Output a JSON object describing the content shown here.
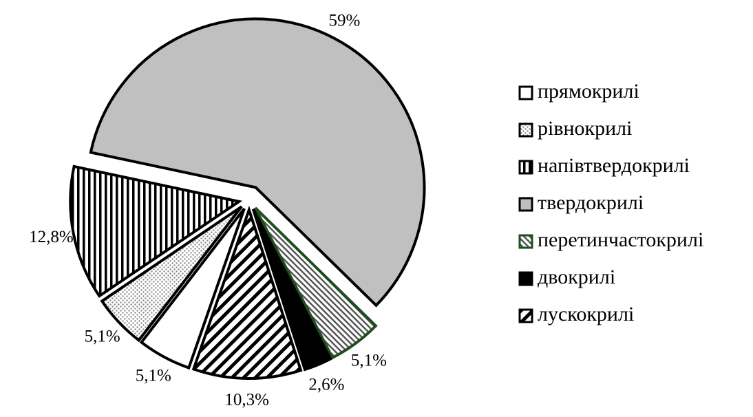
{
  "chart_data": {
    "type": "pie",
    "categories": [
      "прямокрилі",
      "рівнокрилі",
      "напівтвердокрилі",
      "твердокрилі",
      "перетинчастокрилі",
      "двокрилі",
      "лускокрилі"
    ],
    "values": [
      5.1,
      5.1,
      12.8,
      59,
      5.1,
      2.6,
      10.3
    ],
    "value_labels": [
      "5,1%",
      "5,1%",
      "12,8%",
      "59%",
      "5,1%",
      "2,6%",
      "10,3%"
    ],
    "colors": [
      "#ffffff",
      "#ffffff",
      "#ffffff",
      "#c0c0c0",
      "#ffffff",
      "#000000",
      "#ffffff"
    ],
    "patterns": [
      "none",
      "dots",
      "vertical",
      "none",
      "fine-diagonal",
      "none",
      "diagonal"
    ],
    "borders": [
      "#000000",
      "#000000",
      "#000000",
      "#000000",
      "#1e4d1e",
      "#000000",
      "#000000"
    ],
    "legend": "right"
  }
}
